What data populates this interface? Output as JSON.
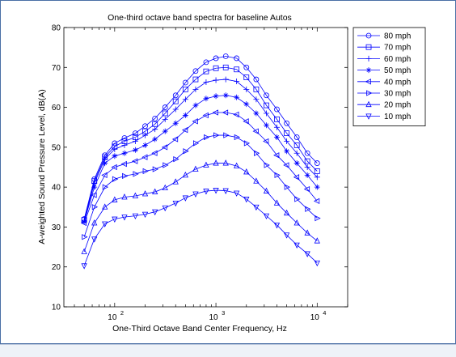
{
  "chart_data": {
    "type": "line",
    "title": "One-third octave band spectra for baseline Autos",
    "xlabel": "One-Third Octave Band Center Frequency, Hz",
    "ylabel": "A-weighted Sound Pressure Level, dB(A)",
    "x_scale": "log",
    "xlim": [
      31.5,
      20000
    ],
    "ylim": [
      10,
      80
    ],
    "y_ticks": [
      10,
      20,
      30,
      40,
      50,
      60,
      70,
      80
    ],
    "x_ticks": [
      100,
      1000,
      10000
    ],
    "x_tick_labels": [
      [
        "10",
        "2"
      ],
      [
        "10",
        "3"
      ],
      [
        "10",
        "4"
      ]
    ],
    "grid": false,
    "legend_position": "outside-right",
    "line_color": "#0000ff",
    "x": [
      50,
      63,
      80,
      100,
      125,
      160,
      200,
      250,
      315,
      400,
      500,
      630,
      800,
      1000,
      1250,
      1600,
      2000,
      2500,
      3150,
      4000,
      5000,
      6300,
      8000,
      10000
    ],
    "series": [
      {
        "name": "80 mph",
        "marker": "circle",
        "values": [
          32,
          42,
          48,
          51,
          52.3,
          53.5,
          55.3,
          57.2,
          60,
          63,
          66.2,
          69.1,
          71.3,
          72.3,
          72.8,
          72.3,
          70,
          67,
          63,
          59.5,
          56,
          52.5,
          48.5,
          46
        ]
      },
      {
        "name": "70 mph",
        "marker": "square",
        "values": [
          31.8,
          41.5,
          47.5,
          50.2,
          51.5,
          52.5,
          54,
          55.8,
          58.5,
          61.5,
          64.5,
          67,
          69,
          69.8,
          70,
          69.5,
          67.5,
          64.5,
          60.5,
          57,
          53.5,
          50.5,
          46.5,
          44
        ]
      },
      {
        "name": "60 mph",
        "marker": "plus",
        "values": [
          31.5,
          41,
          47,
          49.5,
          50.5,
          51.5,
          53,
          54.5,
          57,
          59.5,
          62,
          64.5,
          66.3,
          66.8,
          67,
          66.5,
          64.5,
          62,
          58.5,
          55,
          51.5,
          48.5,
          45,
          42.5
        ]
      },
      {
        "name": "50 mph",
        "marker": "asterisk",
        "values": [
          31.3,
          40,
          46,
          47.8,
          48.5,
          49.3,
          50.5,
          52,
          54,
          56,
          58,
          60.5,
          62.2,
          62.8,
          63,
          62.5,
          60.8,
          58.5,
          55.5,
          52.5,
          49,
          46,
          43,
          40
        ]
      },
      {
        "name": "40 mph",
        "marker": "triangle-left",
        "values": [
          31,
          38,
          43,
          45,
          45.8,
          46.5,
          47.5,
          48.5,
          50,
          52,
          54.3,
          56.5,
          58,
          58.7,
          58.7,
          58.2,
          56.5,
          54,
          51.5,
          48,
          45.5,
          42.5,
          39.5,
          36.5
        ]
      },
      {
        "name": "30 mph",
        "marker": "triangle-right",
        "values": [
          27.5,
          35,
          40,
          42,
          42.8,
          43.3,
          44,
          44.5,
          45.5,
          47,
          49,
          51,
          52.5,
          53,
          53,
          52.5,
          51,
          48.5,
          45.5,
          43,
          40,
          37,
          34.5,
          32.2
        ]
      },
      {
        "name": "20 mph",
        "marker": "triangle-up",
        "values": [
          23.8,
          31,
          35,
          36.8,
          37.5,
          37.8,
          38.3,
          38.8,
          39.8,
          41.3,
          43,
          44.5,
          45.5,
          46,
          46,
          45.3,
          43.8,
          41.5,
          39,
          36,
          33.5,
          31,
          28.5,
          26.5
        ]
      },
      {
        "name": "10 mph",
        "marker": "triangle-down",
        "values": [
          20.3,
          27,
          30.8,
          32,
          32.5,
          32.8,
          33.2,
          33.8,
          34.8,
          36,
          37.3,
          38.3,
          39,
          39.2,
          39.1,
          38.5,
          37,
          35,
          32.8,
          30.5,
          28,
          25.5,
          23.3,
          21
        ]
      }
    ]
  }
}
